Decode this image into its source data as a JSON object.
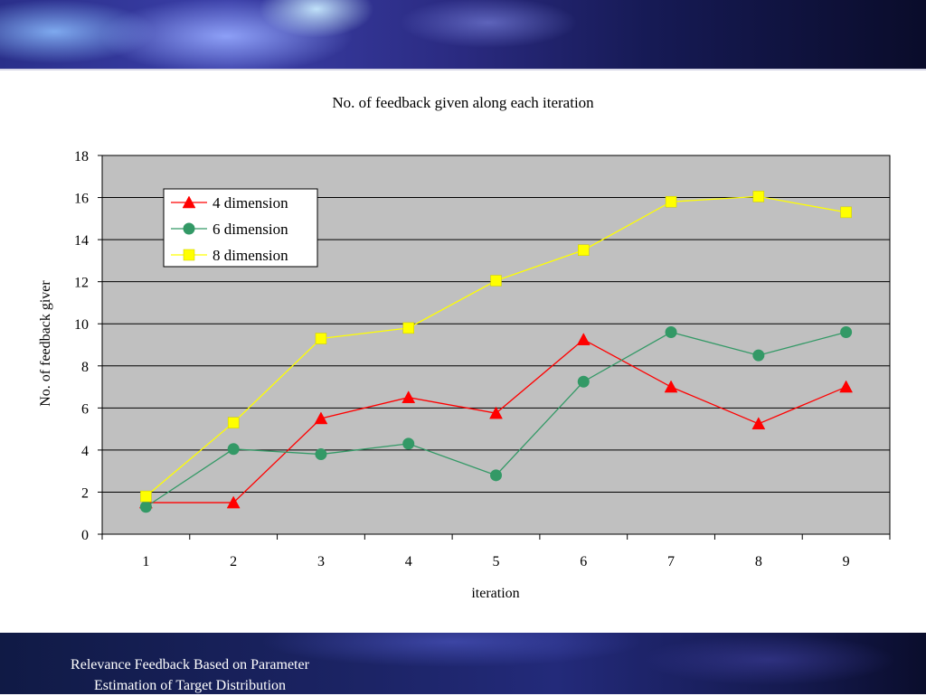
{
  "slide": {
    "footer_line1": "Relevance Feedback Based on Parameter",
    "footer_line2": "Estimation of Target Distribution"
  },
  "colors": {
    "plot_background": "#c0c0c0",
    "series_4d": "#ff0000",
    "series_6d": "#339966",
    "series_8d": "#ffff00"
  },
  "chart_data": {
    "type": "line",
    "title": "No. of feedback given along each iteration",
    "xlabel": "iteration",
    "ylabel": "No. of feedback giver",
    "x": [
      1,
      2,
      3,
      4,
      5,
      6,
      7,
      8,
      9
    ],
    "ylim": [
      0,
      18
    ],
    "yticks": [
      0,
      2,
      4,
      6,
      8,
      10,
      12,
      14,
      16,
      18
    ],
    "grid": true,
    "legend_position": "top-left",
    "series": [
      {
        "name": "4 dimension",
        "marker": "triangle",
        "values": [
          1.5,
          1.5,
          5.5,
          6.5,
          5.75,
          9.25,
          7.0,
          5.25,
          7.0
        ]
      },
      {
        "name": "6 dimension",
        "marker": "circle",
        "values": [
          1.3,
          4.05,
          3.8,
          4.3,
          2.8,
          7.25,
          9.6,
          8.5,
          9.6
        ]
      },
      {
        "name": "8 dimension",
        "marker": "square",
        "values": [
          1.8,
          5.3,
          9.3,
          9.8,
          12.05,
          13.5,
          15.8,
          16.05,
          15.3
        ]
      }
    ]
  }
}
